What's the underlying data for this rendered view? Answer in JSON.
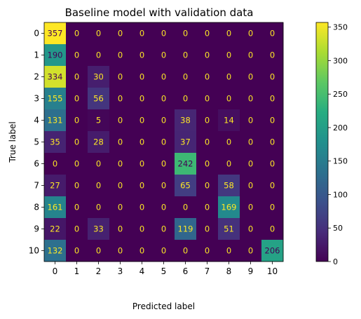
{
  "chart_data": {
    "type": "heatmap",
    "title": "Baseline model with validation data",
    "xlabel": "Predicted label",
    "ylabel": "True label",
    "x_categories": [
      "0",
      "1",
      "2",
      "3",
      "4",
      "5",
      "6",
      "7",
      "8",
      "9",
      "10"
    ],
    "y_categories": [
      "0",
      "1",
      "2",
      "3",
      "4",
      "5",
      "6",
      "7",
      "8",
      "9",
      "10"
    ],
    "values": [
      [
        357,
        0,
        0,
        0,
        0,
        0,
        0,
        0,
        0,
        0,
        0
      ],
      [
        190,
        0,
        0,
        0,
        0,
        0,
        0,
        0,
        0,
        0,
        0
      ],
      [
        334,
        0,
        30,
        0,
        0,
        0,
        0,
        0,
        0,
        0,
        0
      ],
      [
        155,
        0,
        56,
        0,
        0,
        0,
        0,
        0,
        0,
        0,
        0
      ],
      [
        131,
        0,
        5,
        0,
        0,
        0,
        38,
        0,
        14,
        0,
        0
      ],
      [
        35,
        0,
        28,
        0,
        0,
        0,
        37,
        0,
        0,
        0,
        0
      ],
      [
        0,
        0,
        0,
        0,
        0,
        0,
        242,
        0,
        0,
        0,
        0
      ],
      [
        27,
        0,
        0,
        0,
        0,
        0,
        65,
        0,
        58,
        0,
        0
      ],
      [
        161,
        0,
        0,
        0,
        0,
        0,
        0,
        0,
        169,
        0,
        0
      ],
      [
        22,
        0,
        33,
        0,
        0,
        0,
        119,
        0,
        51,
        0,
        0
      ],
      [
        132,
        0,
        0,
        0,
        0,
        0,
        0,
        0,
        0,
        0,
        206
      ]
    ],
    "colormap": "viridis",
    "value_range": [
      0,
      357
    ],
    "colorbar_ticks": [
      0,
      50,
      100,
      150,
      200,
      250,
      300,
      350
    ],
    "text_colors": {
      "low": "#fde725",
      "high": "#440154"
    }
  }
}
